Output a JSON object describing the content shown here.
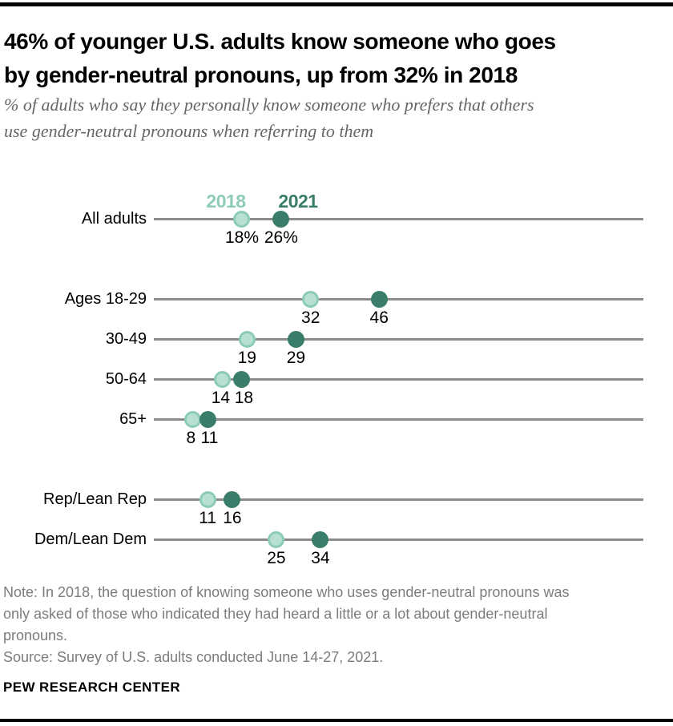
{
  "header": {
    "title_lines": [
      "46% of younger U.S. adults know someone who goes",
      "by gender-neutral pronouns, up from 32% in 2018"
    ],
    "subtitle_lines": [
      "% of adults who say they personally know someone who prefers that others",
      "use gender-neutral pronouns when referring to them"
    ]
  },
  "chart_data": {
    "type": "dumbbell-dot-plot",
    "x_range": [
      0,
      100
    ],
    "grid": false,
    "legend_position": "above-first-row-dots",
    "series": [
      {
        "name": "2018",
        "fill": "#b7e0d2",
        "ring": "#8ccbb8",
        "label_color": "#8fcbb9"
      },
      {
        "name": "2021",
        "fill": "#3b7d6b",
        "ring": "#3b7d6b",
        "label_color": "#3b7d6b"
      }
    ],
    "rows": [
      {
        "label": "All adults",
        "group": "overall",
        "v2018": 18,
        "v2021": 26,
        "label2018": "18%",
        "label2021": "26%"
      },
      {
        "label": "Ages 18-29",
        "group": "age",
        "v2018": 32,
        "v2021": 46,
        "label2018": "32",
        "label2021": "46"
      },
      {
        "label": "30-49",
        "group": "age",
        "v2018": 19,
        "v2021": 29,
        "label2018": "19",
        "label2021": "29"
      },
      {
        "label": "50-64",
        "group": "age",
        "v2018": 14,
        "v2021": 18,
        "label2018": "14",
        "label2021": "18"
      },
      {
        "label": "65+",
        "group": "age",
        "v2018": 8,
        "v2021": 11,
        "label2018": "8",
        "label2021": "11"
      },
      {
        "label": "Rep/Lean Rep",
        "group": "party",
        "v2018": 11,
        "v2021": 16,
        "label2018": "11",
        "label2021": "16"
      },
      {
        "label": "Dem/Lean Dem",
        "group": "party",
        "v2018": 25,
        "v2021": 34,
        "label2018": "25",
        "label2021": "34"
      }
    ]
  },
  "footer": {
    "note_lines": [
      "Note: In 2018, the question of knowing someone who uses gender-neutral pronouns was",
      "only asked of those who indicated they had heard a little or a lot about gender-neutral",
      "pronouns.",
      "Source: Survey of U.S. adults conducted June 14-27, 2021."
    ],
    "brand": "PEW RESEARCH CENTER"
  },
  "colors": {
    "teal_2018_fill": "#b7e0d2",
    "teal_2018_ring": "#8ccbb8",
    "teal_2021": "#3b7d6b",
    "line_gray": "#8c8c8c",
    "subtitle_gray": "#666666",
    "note_gray": "#7c7c7c",
    "rule_black": "#000000"
  }
}
